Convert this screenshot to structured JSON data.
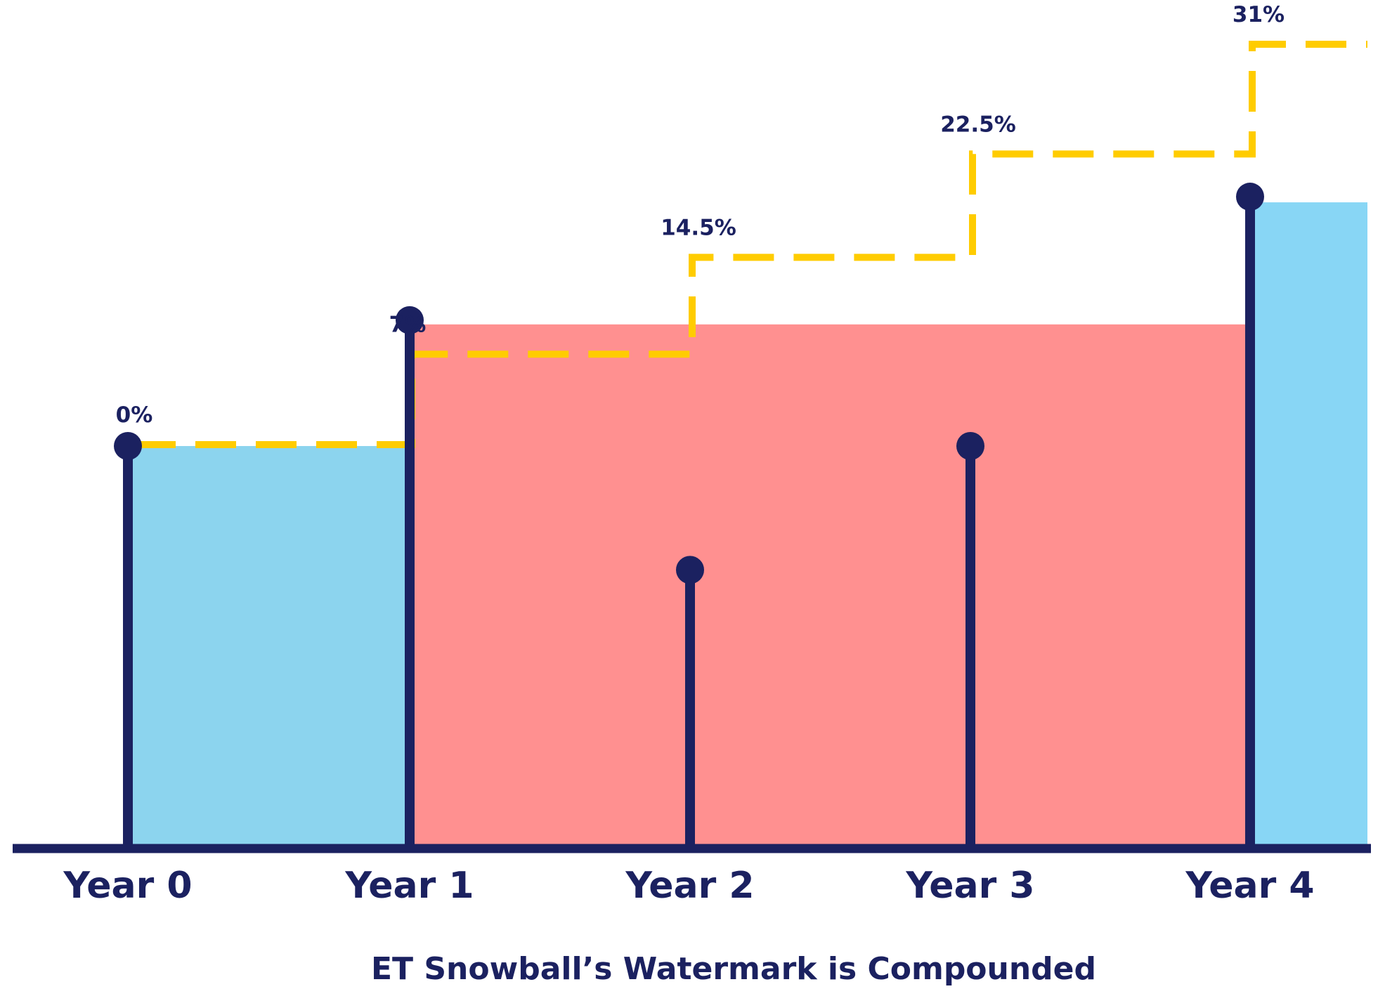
{
  "chart_data": {
    "type": "line",
    "title": "ET Snowball’s Watermark is Compounded",
    "xlabel": "",
    "ylabel": "",
    "categories": [
      "Year 0",
      "Year 1",
      "Year 2",
      "Year 3",
      "Year 4"
    ],
    "series": [
      {
        "role": "watermark-step-line",
        "style": "dashed-step",
        "values": [
          0,
          7,
          14.5,
          22.5,
          31
        ],
        "data_labels": [
          "0%",
          "7%",
          "14.5%",
          "22.5%",
          "31%"
        ]
      },
      {
        "role": "value-stems",
        "style": "lollipop",
        "values": [
          100,
          131.6,
          68.9,
          100,
          162.6
        ]
      }
    ],
    "y_axis_shown": false,
    "grid": false,
    "legend": "none",
    "colors": {
      "axis": "#1b2160",
      "stems": "#1b2160",
      "watermark": "#ffcc00",
      "above_watermark_fill": "#8cd4ee",
      "above_watermark_fill_right": "#88d6f5",
      "below_watermark_fill": "#ff9090",
      "text": "#1b2160"
    }
  }
}
